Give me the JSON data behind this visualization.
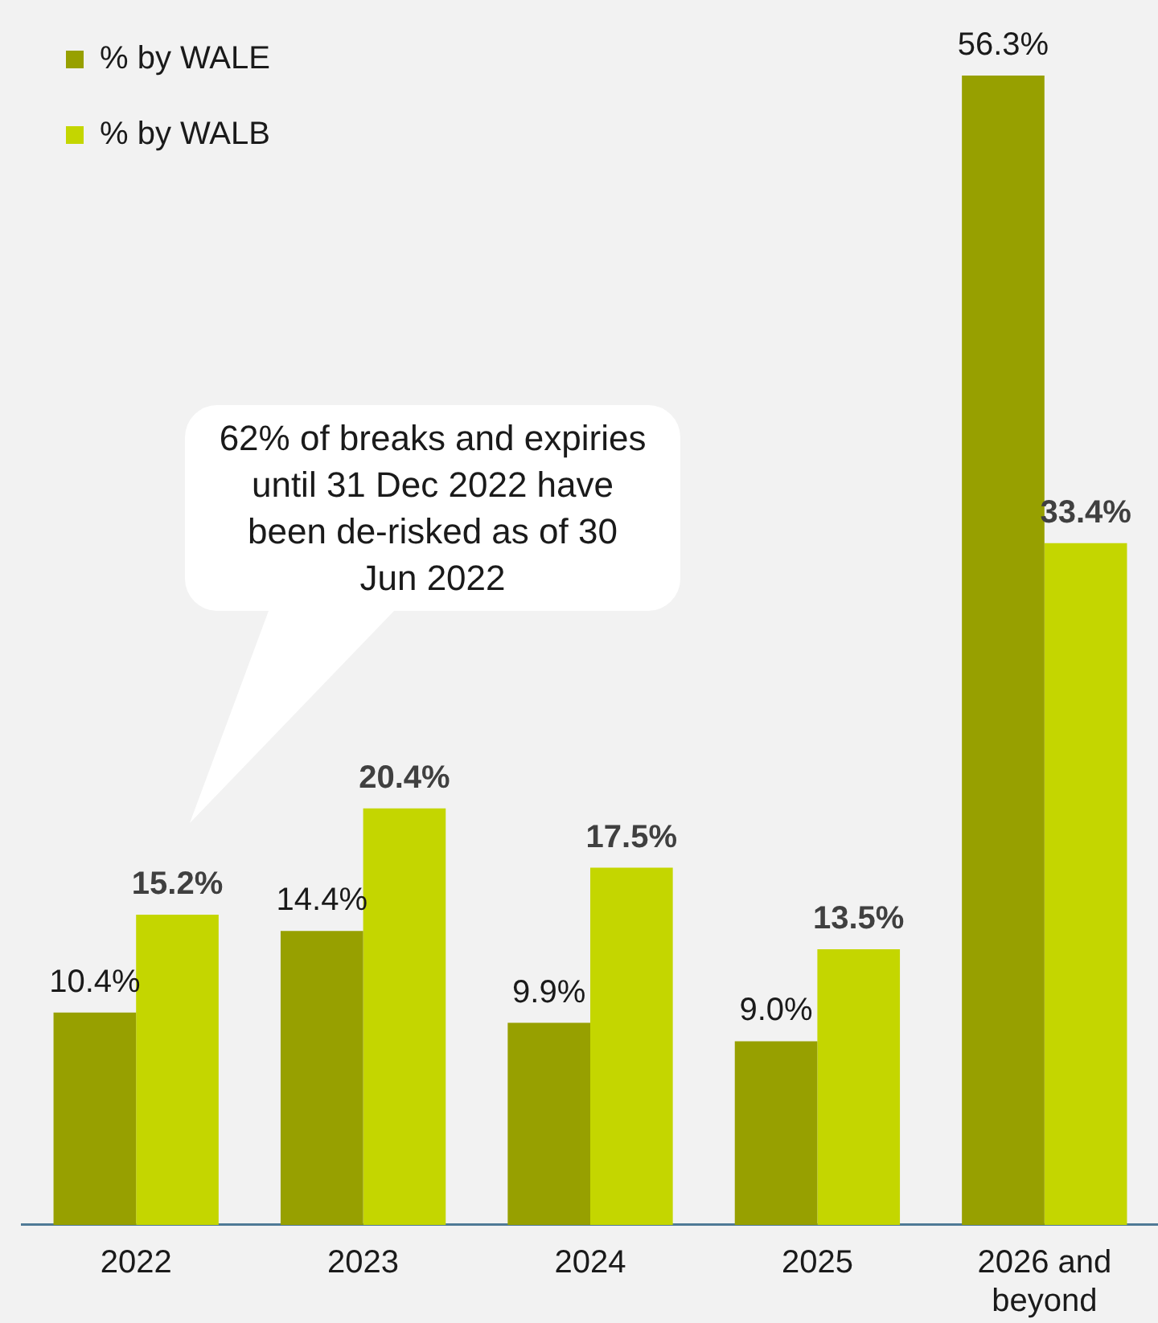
{
  "chart_data": {
    "type": "bar",
    "categories": [
      "2022",
      "2023",
      "2024",
      "2025",
      "2026 and beyond"
    ],
    "series": [
      {
        "name": "% by WALE",
        "color": "#97a000",
        "values": [
          10.4,
          14.4,
          9.9,
          9.0,
          56.3
        ],
        "value_labels": [
          "10.4%",
          "14.4%",
          "9.9%",
          "9.0%",
          "56.3%"
        ]
      },
      {
        "name": "% by WALB",
        "color": "#c4d600",
        "values": [
          15.2,
          20.4,
          17.5,
          13.5,
          33.4
        ],
        "value_labels": [
          "15.2%",
          "20.4%",
          "17.5%",
          "13.5%",
          "33.4%"
        ]
      }
    ],
    "ylim": [
      0,
      60
    ],
    "tick_labels": "x",
    "legend": "top left",
    "annotations": [
      "62% of breaks and expiries\nuntil 31 Dec 2022 have\nbeen de-risked as of 30\nJun 2022"
    ]
  }
}
